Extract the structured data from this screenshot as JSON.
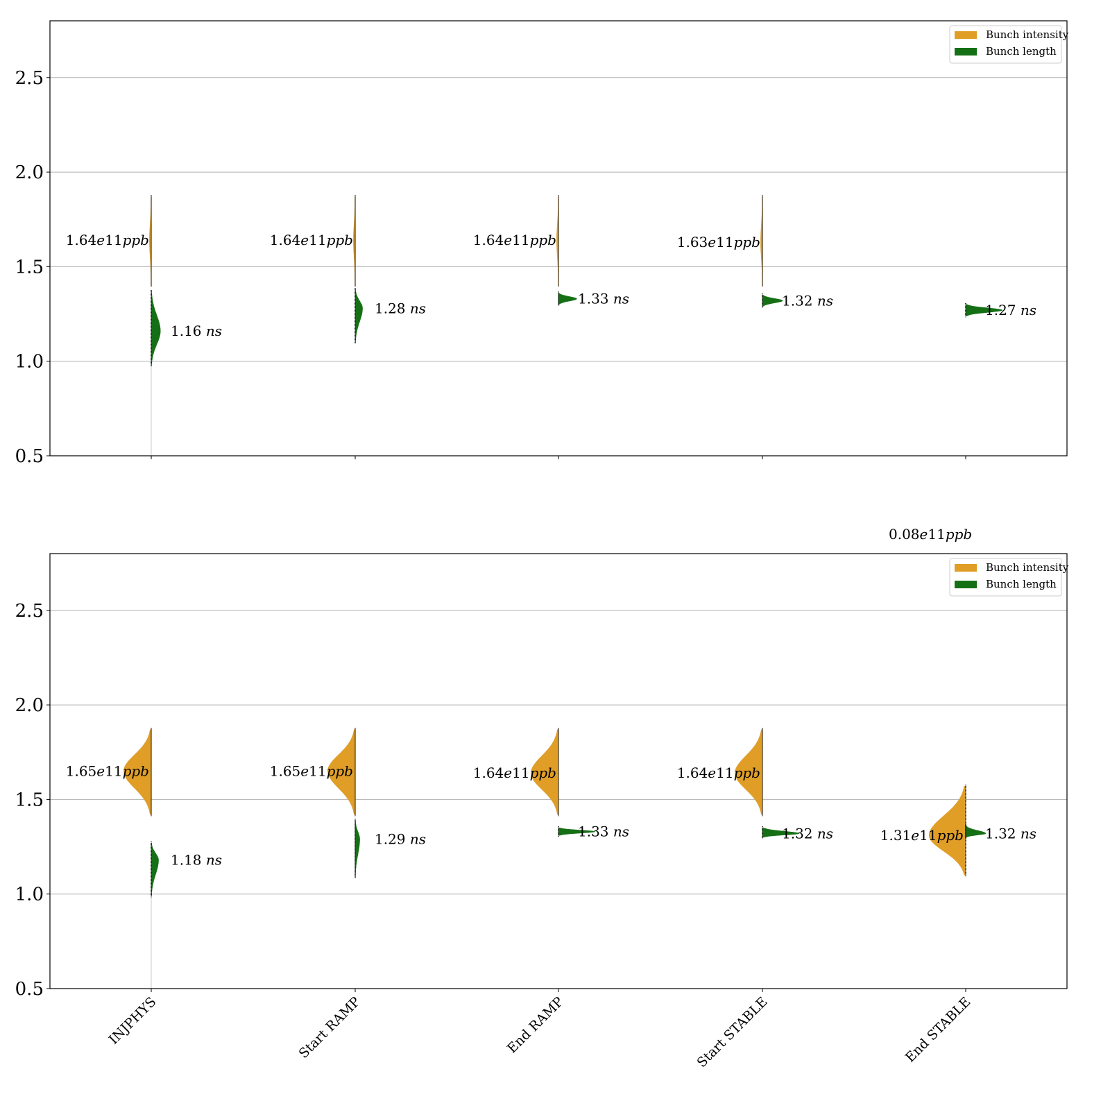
{
  "chart_data": [
    {
      "type": "violin",
      "panel": "top",
      "title": "",
      "xlabel": "",
      "ylabel": "",
      "ylim": [
        0.5,
        2.8
      ],
      "yticks": [
        0.5,
        1.0,
        1.5,
        2.0,
        2.5
      ],
      "ytick_labels": [
        "0.5",
        "1.0",
        "1.5",
        "2.0",
        "2.5"
      ],
      "grid": "y",
      "categories": [
        "INJPHYS",
        "Start RAMP",
        "End RAMP",
        "Start STABLE",
        "End STABLE"
      ],
      "show_xtick_labels": false,
      "legend": {
        "placement": "top-right",
        "entries": [
          {
            "label": "Bunch intensity",
            "color": "#E09E27"
          },
          {
            "label": "Bunch length",
            "color": "#157015"
          }
        ]
      },
      "series": [
        {
          "name": "Bunch intensity",
          "side": "left",
          "color": "#E09E27",
          "medians": [
            1.64,
            1.64,
            1.64,
            1.63,
            null
          ],
          "ranges": [
            [
              1.4,
              1.87
            ],
            [
              1.4,
              1.87
            ],
            [
              1.4,
              1.87
            ],
            [
              1.4,
              1.87
            ],
            null
          ],
          "relative_width": [
            0.02,
            0.02,
            0.02,
            0.02,
            0
          ],
          "labels": [
            "1.64e11ppb",
            "1.64e11ppb",
            "1.64e11ppb",
            "1.63e11ppb",
            ""
          ]
        },
        {
          "name": "Bunch length",
          "side": "right",
          "color": "#157015",
          "medians": [
            1.16,
            1.28,
            1.33,
            1.32,
            1.27
          ],
          "ranges": [
            [
              0.98,
              1.37
            ],
            [
              1.1,
              1.38
            ],
            [
              1.3,
              1.36
            ],
            [
              1.29,
              1.35
            ],
            [
              1.24,
              1.3
            ]
          ],
          "relative_width": [
            0.1,
            0.08,
            0.2,
            0.22,
            0.4
          ],
          "labels": [
            "1.16 ns",
            "1.28 ns",
            "1.33 ns",
            "1.32 ns",
            "1.27 ns"
          ]
        }
      ],
      "annotations": [
        {
          "text": "0.08e11ppb",
          "category": "End STABLE",
          "position": "above-bottom-panel"
        }
      ]
    },
    {
      "type": "violin",
      "panel": "bottom",
      "title": "",
      "xlabel": "",
      "ylabel": "",
      "ylim": [
        0.5,
        2.8
      ],
      "yticks": [
        0.5,
        1.0,
        1.5,
        2.0,
        2.5
      ],
      "ytick_labels": [
        "0.5",
        "1.0",
        "1.5",
        "2.0",
        "2.5"
      ],
      "grid": "y",
      "categories": [
        "INJPHYS",
        "Start RAMP",
        "End RAMP",
        "Start STABLE",
        "End STABLE"
      ],
      "show_xtick_labels": true,
      "legend": {
        "placement": "top-right",
        "entries": [
          {
            "label": "Bunch intensity",
            "color": "#E09E27"
          },
          {
            "label": "Bunch length",
            "color": "#157015"
          }
        ]
      },
      "series": [
        {
          "name": "Bunch intensity",
          "side": "left",
          "color": "#E09E27",
          "medians": [
            1.65,
            1.65,
            1.64,
            1.64,
            1.31
          ],
          "ranges": [
            [
              1.42,
              1.87
            ],
            [
              1.42,
              1.87
            ],
            [
              1.42,
              1.87
            ],
            [
              1.42,
              1.87
            ],
            [
              1.1,
              1.57
            ]
          ],
          "relative_width": [
            0.3,
            0.3,
            0.3,
            0.3,
            0.4
          ],
          "labels": [
            "1.65e11ppb",
            "1.65e11ppb",
            "1.64e11ppb",
            "1.64e11ppb",
            "1.31e11ppb"
          ]
        },
        {
          "name": "Bunch length",
          "side": "right",
          "color": "#157015",
          "medians": [
            1.18,
            1.29,
            1.33,
            1.32,
            1.32
          ],
          "ranges": [
            [
              0.99,
              1.27
            ],
            [
              1.09,
              1.39
            ],
            [
              1.31,
              1.35
            ],
            [
              1.3,
              1.35
            ],
            [
              1.3,
              1.36
            ]
          ],
          "relative_width": [
            0.08,
            0.05,
            0.4,
            0.4,
            0.22
          ],
          "labels": [
            "1.18 ns",
            "1.29 ns",
            "1.33 ns",
            "1.32 ns",
            "1.32 ns"
          ]
        }
      ]
    }
  ],
  "colors": {
    "intensity": "#E09E27",
    "length": "#157015",
    "grid": "#b0b0b0",
    "axis": "#000000"
  }
}
